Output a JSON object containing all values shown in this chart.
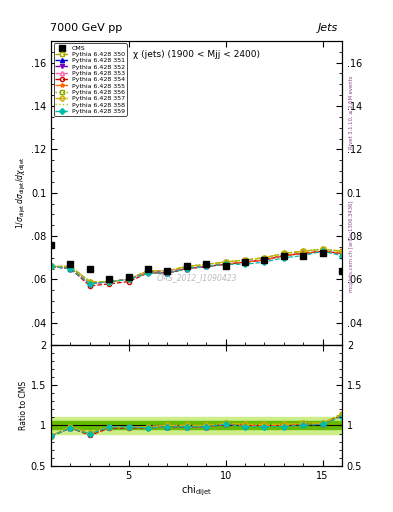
{
  "title_top": "7000 GeV pp",
  "title_right": "Jets",
  "plot_title": "χ (jets) (1900 < Mjj < 2400)",
  "watermark": "CMS_2012_I1090423",
  "xlabel": "chi_dijet",
  "xlim": [
    1,
    16
  ],
  "ylim_main": [
    0.03,
    0.17
  ],
  "ylim_ratio": [
    0.5,
    2.0
  ],
  "yticks_main": [
    0.04,
    0.06,
    0.08,
    0.1,
    0.12,
    0.14,
    0.16
  ],
  "ytick_labels_main": [
    ".04",
    ".06",
    ".08",
    "0.1",
    ".12",
    ".14",
    ".16"
  ],
  "yticks_ratio": [
    0.5,
    1.0,
    1.5,
    2.0
  ],
  "ytick_labels_ratio": [
    "0.5",
    "1",
    "1.5",
    "2"
  ],
  "xticks": [
    5,
    10,
    15
  ],
  "cms_x": [
    1,
    2,
    3,
    4,
    5,
    6,
    7,
    8,
    9,
    10,
    11,
    12,
    13,
    14,
    15,
    16
  ],
  "cms_y": [
    0.076,
    0.067,
    0.065,
    0.06,
    0.061,
    0.065,
    0.064,
    0.066,
    0.067,
    0.066,
    0.068,
    0.069,
    0.071,
    0.071,
    0.072,
    0.064
  ],
  "series": [
    {
      "label": "Pythia 6.428 350",
      "color": "#aaaa00",
      "linestyle": "--",
      "marker": "s",
      "fillstyle": "none",
      "y": [
        0.066,
        0.066,
        0.059,
        0.059,
        0.06,
        0.064,
        0.064,
        0.066,
        0.067,
        0.068,
        0.069,
        0.07,
        0.072,
        0.073,
        0.074,
        0.073
      ]
    },
    {
      "label": "Pythia 6.428 351",
      "color": "#0000dd",
      "linestyle": "--",
      "marker": "^",
      "fillstyle": "full",
      "y": [
        0.066,
        0.065,
        0.058,
        0.059,
        0.06,
        0.064,
        0.063,
        0.065,
        0.066,
        0.067,
        0.068,
        0.069,
        0.071,
        0.072,
        0.073,
        0.072
      ]
    },
    {
      "label": "Pythia 6.428 352",
      "color": "#7700bb",
      "linestyle": "--",
      "marker": "v",
      "fillstyle": "full",
      "y": [
        0.066,
        0.065,
        0.058,
        0.059,
        0.06,
        0.063,
        0.063,
        0.065,
        0.066,
        0.067,
        0.068,
        0.069,
        0.071,
        0.072,
        0.073,
        0.072
      ]
    },
    {
      "label": "Pythia 6.428 353",
      "color": "#ff66aa",
      "linestyle": "--",
      "marker": "^",
      "fillstyle": "none",
      "y": [
        0.066,
        0.066,
        0.058,
        0.059,
        0.06,
        0.064,
        0.064,
        0.065,
        0.066,
        0.067,
        0.068,
        0.069,
        0.071,
        0.072,
        0.073,
        0.072
      ]
    },
    {
      "label": "Pythia 6.428 354",
      "color": "#cc0000",
      "linestyle": "--",
      "marker": "o",
      "fillstyle": "none",
      "y": [
        0.066,
        0.065,
        0.057,
        0.058,
        0.059,
        0.063,
        0.063,
        0.065,
        0.066,
        0.067,
        0.068,
        0.069,
        0.071,
        0.072,
        0.073,
        0.072
      ]
    },
    {
      "label": "Pythia 6.428 355",
      "color": "#ff6600",
      "linestyle": "--",
      "marker": "*",
      "fillstyle": "full",
      "y": [
        0.066,
        0.065,
        0.058,
        0.059,
        0.06,
        0.063,
        0.063,
        0.065,
        0.066,
        0.067,
        0.068,
        0.069,
        0.071,
        0.072,
        0.073,
        0.072
      ]
    },
    {
      "label": "Pythia 6.428 356",
      "color": "#88aa00",
      "linestyle": ":",
      "marker": "s",
      "fillstyle": "none",
      "y": [
        0.066,
        0.066,
        0.059,
        0.059,
        0.06,
        0.064,
        0.064,
        0.066,
        0.067,
        0.068,
        0.069,
        0.07,
        0.072,
        0.073,
        0.074,
        0.073
      ]
    },
    {
      "label": "Pythia 6.428 357",
      "color": "#ccaa00",
      "linestyle": "-.",
      "marker": "D",
      "fillstyle": "none",
      "y": [
        0.066,
        0.066,
        0.059,
        0.059,
        0.06,
        0.064,
        0.064,
        0.066,
        0.067,
        0.068,
        0.069,
        0.07,
        0.072,
        0.073,
        0.074,
        0.073
      ]
    },
    {
      "label": "Pythia 6.428 358",
      "color": "#aacc00",
      "linestyle": ":",
      "marker": null,
      "fillstyle": "none",
      "y": [
        0.066,
        0.066,
        0.059,
        0.059,
        0.06,
        0.064,
        0.064,
        0.066,
        0.067,
        0.068,
        0.069,
        0.07,
        0.072,
        0.073,
        0.074,
        0.073
      ]
    },
    {
      "label": "Pythia 6.428 359",
      "color": "#00bbaa",
      "linestyle": "--",
      "marker": "D",
      "fillstyle": "full",
      "y": [
        0.066,
        0.065,
        0.058,
        0.059,
        0.06,
        0.063,
        0.063,
        0.065,
        0.066,
        0.067,
        0.067,
        0.068,
        0.07,
        0.071,
        0.073,
        0.071
      ]
    }
  ],
  "band_inner_color": "#66bb00",
  "band_outer_color": "#ccee88",
  "band_inner_half": 0.05,
  "band_outer_half": 0.1,
  "right_label_1": "Rivet 3.1.10, ≥ 2.6M events",
  "right_label_2": "mcplots.cern.ch [arXiv:1306.3436]"
}
